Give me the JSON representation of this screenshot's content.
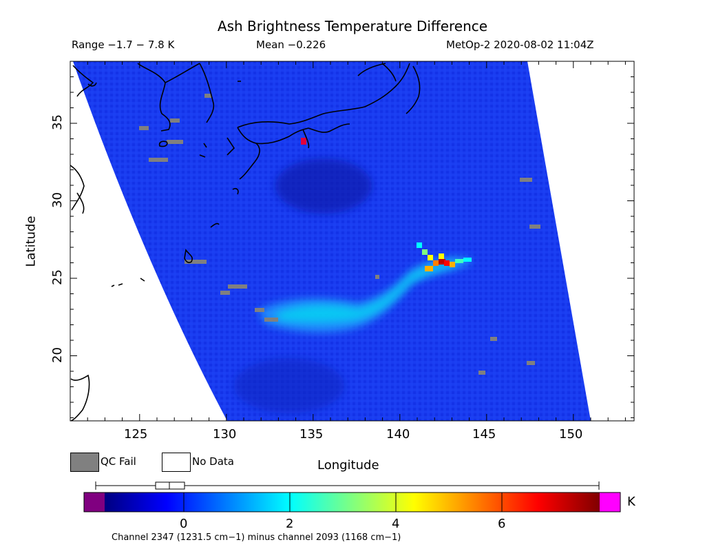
{
  "header": {
    "title": "Ash Brightness Temperature Difference",
    "range": "Range −1.7 − 7.8 K",
    "mean": "Mean −0.226",
    "sat_time": "MetOp-2 2020-08-02 11:04Z"
  },
  "map": {
    "x_ticks": [
      "125",
      "130",
      "135",
      "140",
      "145",
      "150"
    ],
    "y_ticks": [
      "20",
      "25",
      "30",
      "35"
    ],
    "xlabel": "Longitude",
    "ylabel": "Latitude",
    "lon_range": [
      121,
      153.5
    ],
    "lat_range": [
      15.8,
      39
    ]
  },
  "legend": {
    "qc_fail": "QC Fail",
    "no_data": "No Data",
    "qc_color": "#808080",
    "no_data_color": "#ffffff"
  },
  "colorbar": {
    "ticks": [
      "0",
      "2",
      "4",
      "6"
    ],
    "unit": "K",
    "range": [
      -1.7,
      7.8
    ],
    "under_color": "#800080",
    "over_color": "#ff00ff",
    "stops": [
      "#000080",
      "#0000ff",
      "#0080ff",
      "#00ffff",
      "#80ff80",
      "#ffff00",
      "#ff8000",
      "#ff0000",
      "#800000"
    ]
  },
  "footer": {
    "text": "Channel 2347 (1231.5 cm−1) minus channel 2093 (1168 cm−1)"
  }
}
